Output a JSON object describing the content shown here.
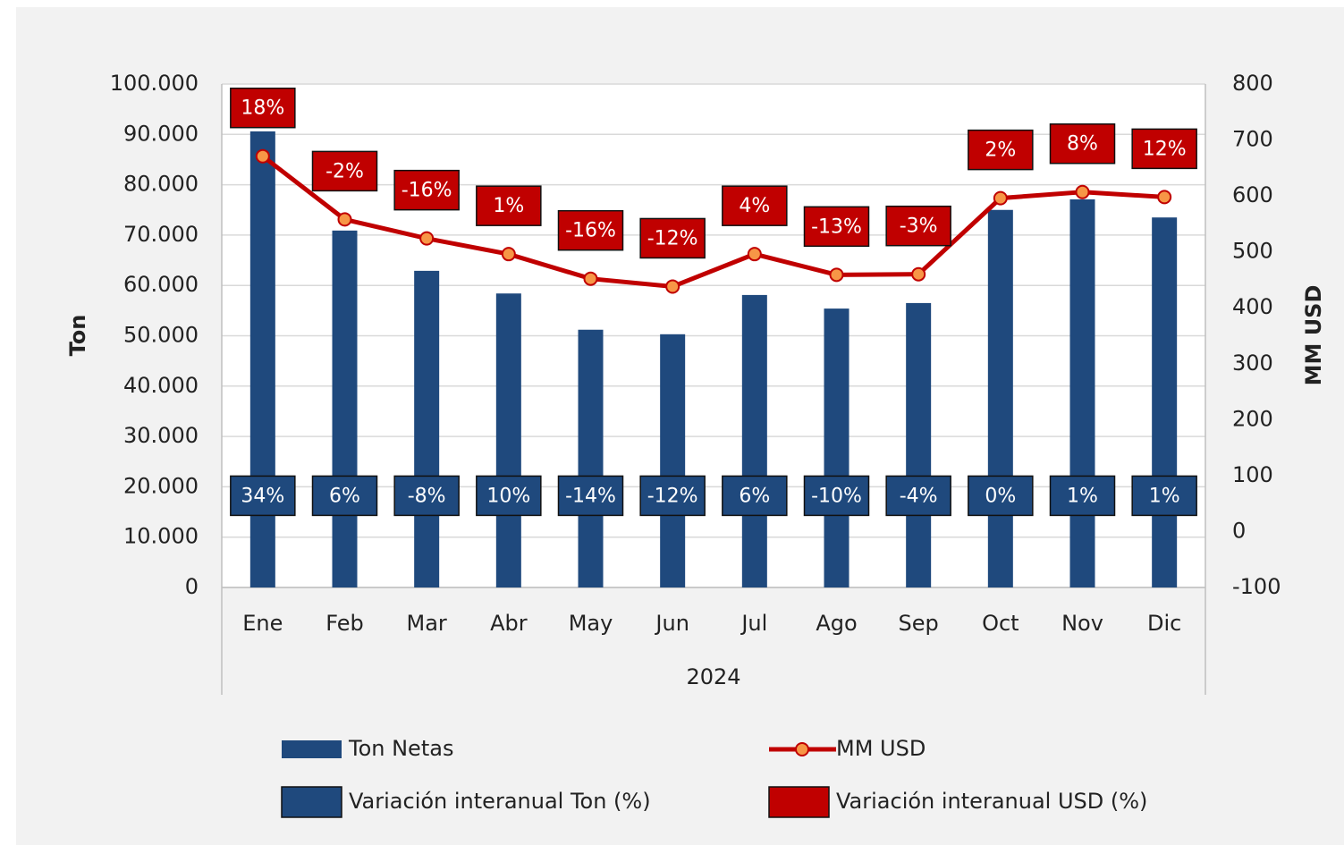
{
  "chart_data": {
    "type": "bar",
    "categories": [
      "Ene",
      "Feb",
      "Mar",
      "Abr",
      "May",
      "Jun",
      "Jul",
      "Ago",
      "Sep",
      "Oct",
      "Nov",
      "Dic"
    ],
    "x_group_label": "2024",
    "ylabel": "Ton",
    "y2label": "MM USD",
    "ylim": [
      0,
      100000
    ],
    "yticks": [
      0,
      {
        "value": 10000,
        "label": "10.000"
      },
      {
        "value": 20000,
        "label": "20.000"
      },
      {
        "value": 30000,
        "label": "30.000"
      },
      {
        "value": 40000,
        "label": "40.000"
      },
      {
        "value": 50000,
        "label": "50.000"
      },
      {
        "value": 60000,
        "label": "60.000"
      },
      {
        "value": 70000,
        "label": "70.000"
      },
      {
        "value": 80000,
        "label": "80.000"
      },
      {
        "value": 90000,
        "label": "90.000"
      },
      {
        "value": 100000,
        "label": "100.000"
      }
    ],
    "y2lim": [
      -100,
      800
    ],
    "y2ticks": [
      -100,
      0,
      100,
      200,
      300,
      400,
      500,
      600,
      700,
      800
    ],
    "grid": true,
    "legend": "bottom",
    "series": [
      {
        "name": "Ton Netas",
        "type": "bar",
        "color": "#1f497d",
        "values": [
          90600,
          70900,
          62900,
          58400,
          51200,
          50300,
          58100,
          55400,
          56500,
          75000,
          77100,
          73500
        ]
      },
      {
        "name": "MM USD",
        "type": "line",
        "axis": "y2",
        "color": "#c00000",
        "marker_color": "#f79646",
        "values": [
          671,
          558,
          524,
          496,
          452,
          438,
          496,
          459,
          460,
          596,
          607,
          598
        ]
      },
      {
        "name": "Variación interanual Ton (%)",
        "type": "label",
        "color": "#1f497d",
        "values": [
          34,
          6,
          -8,
          10,
          -14,
          -12,
          6,
          -10,
          -4,
          0,
          1,
          1
        ],
        "value_labels": [
          "34%",
          "6%",
          "-8%",
          "10%",
          "-14%",
          "-12%",
          "6%",
          "-10%",
          "-4%",
          "0%",
          "1%",
          "1%"
        ]
      },
      {
        "name": "Variación interanual USD (%)",
        "type": "label",
        "color": "#c00000",
        "values": [
          18,
          -2,
          -16,
          1,
          -16,
          -12,
          4,
          -13,
          -3,
          2,
          8,
          12
        ],
        "value_labels": [
          "18%",
          "-2%",
          "-16%",
          "1%",
          "-16%",
          "-12%",
          "4%",
          "-13%",
          "-3%",
          "2%",
          "8%",
          "12%"
        ]
      }
    ]
  }
}
